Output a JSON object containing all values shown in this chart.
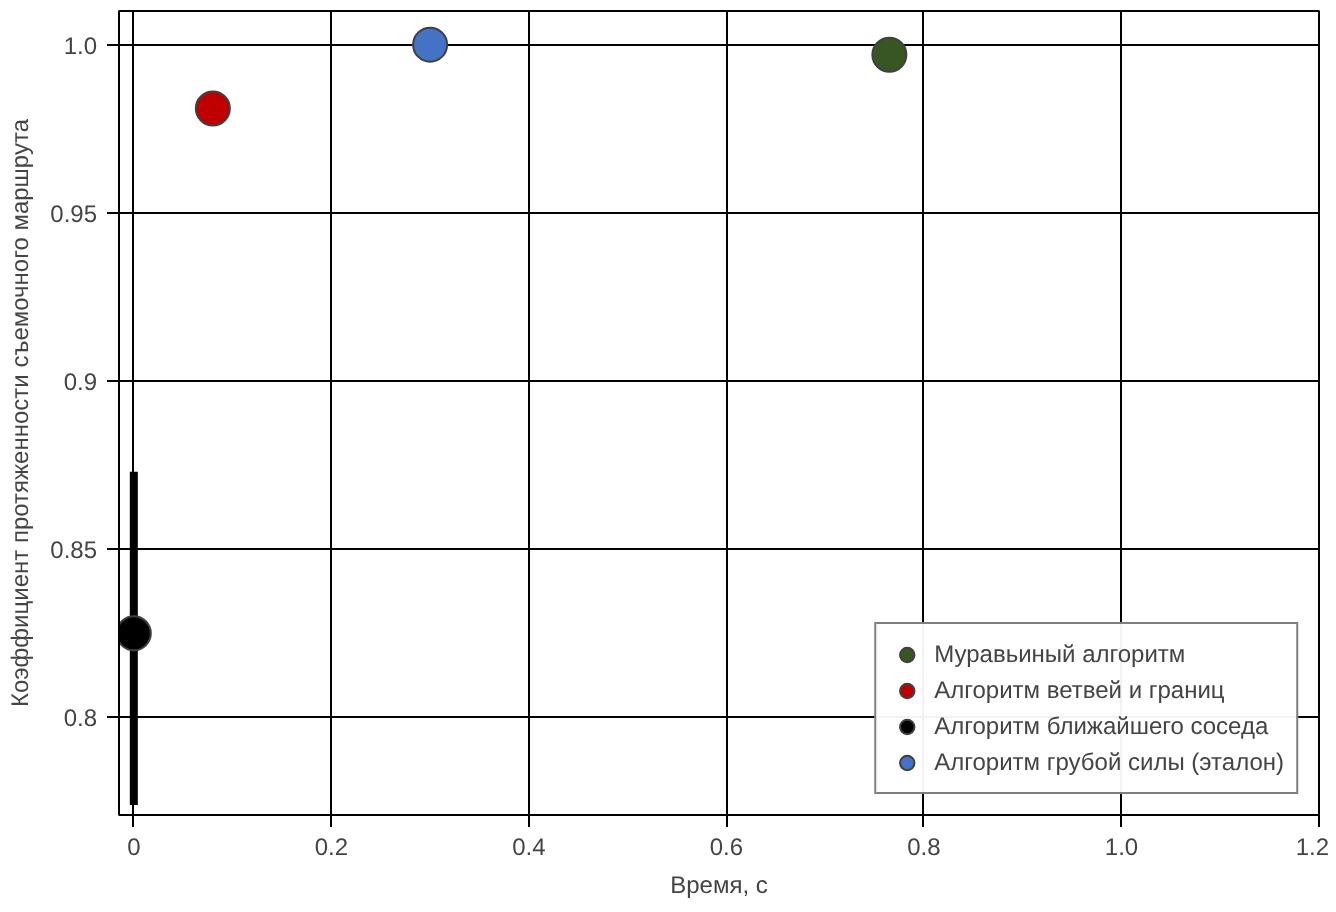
{
  "chart_data": {
    "type": "scatter",
    "xlabel": "Время, с",
    "ylabel": "Коэффициент протяженности съемочного маршрута",
    "xlim": [
      -0.015,
      1.2
    ],
    "ylim": [
      0.771,
      1.01
    ],
    "xticks": [
      0,
      0.2,
      0.4,
      0.6,
      0.8,
      {
        "value": 1.0,
        "label": "1.0"
      },
      1.2
    ],
    "yticks": [
      0.8,
      0.85,
      0.9,
      0.95,
      {
        "value": 1.0,
        "label": "1.0"
      }
    ],
    "grid": true,
    "legend": "bottom right",
    "marker": "circle",
    "series": [
      {
        "name": "Муравьиный алгоритм",
        "color": "#375623",
        "x": [
          0.765
        ],
        "values": [
          0.997
        ]
      },
      {
        "name": "Алгоритм ветвей и границ",
        "color": "#c00000",
        "x": [
          0.08
        ],
        "values": [
          0.981
        ]
      },
      {
        "name": "Алгоритм ближайшего соседа",
        "color": "#000000",
        "x": [
          0
        ],
        "values": [
          0.825
        ],
        "errors": [
          [
            0.774,
            0.873
          ]
        ]
      },
      {
        "name": "Алгоритм грубой силы (эталон)",
        "color": "#4472c4",
        "x": [
          0.3
        ],
        "values": [
          1.0
        ]
      }
    ]
  }
}
